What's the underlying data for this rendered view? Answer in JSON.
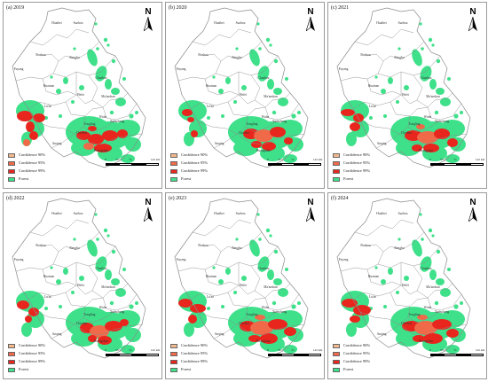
{
  "figure": {
    "panels": [
      {
        "title": "(a) 2019",
        "year": 2019
      },
      {
        "title": "(b) 2020",
        "year": 2020
      },
      {
        "title": "(c) 2021",
        "year": 2021
      },
      {
        "title": "(d) 2022",
        "year": 2022
      },
      {
        "title": "(e) 2023",
        "year": 2023
      },
      {
        "title": "(f) 2024",
        "year": 2024
      }
    ],
    "north_label": "N",
    "legend": [
      {
        "label": "Confidence 90%",
        "color": "#f2b98e"
      },
      {
        "label": "Confidence 95%",
        "color": "#f06a4a"
      },
      {
        "label": "Confidence 99%",
        "color": "#e8261e"
      },
      {
        "label": "Forest",
        "color": "#3ee08a"
      }
    ],
    "scale_ticks": [
      "0",
      "35.5",
      "71",
      "",
      "142 km"
    ],
    "cities": [
      "Huaibei",
      "Suzhou",
      "Bozhou",
      "Bengbu",
      "Fuyang",
      "Huainan",
      "Chuzhou",
      "Hefei",
      "Lu'an",
      "Ma'anshan",
      "Wuhu",
      "Tongling",
      "Xuancheng",
      "Chizhou",
      "Anqing",
      "Huangshan"
    ]
  }
}
